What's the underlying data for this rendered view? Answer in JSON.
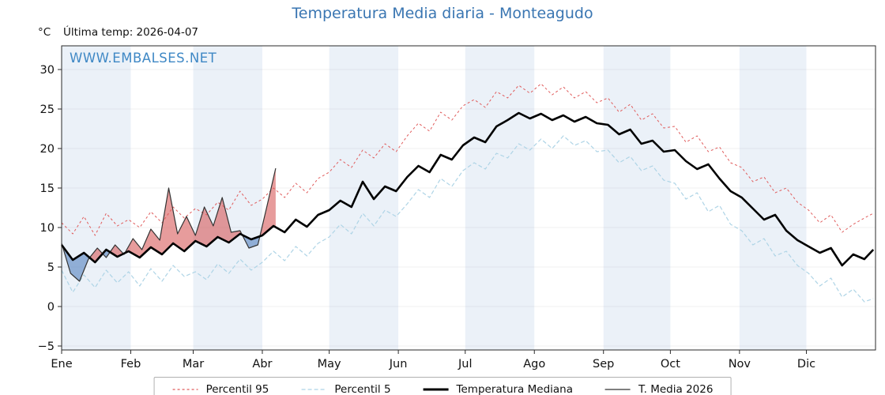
{
  "title": "Temperatura Media diaria - Monteagudo",
  "watermark": "WWW.EMBALSES.NET",
  "unit_label": "°C",
  "last_temp_label": "Última temp: 2026-04-07",
  "colors": {
    "title": "#3a76b2",
    "watermark": "#3f88c5",
    "month_band": "#ebf1f8",
    "axis": "#2a2a2a",
    "fill_above": "rgba(215,90,90,0.6)",
    "fill_below": "rgba(105,145,200,0.7)"
  },
  "chart_data": {
    "type": "line",
    "title": "Temperatura Media diaria - Monteagudo",
    "x_unit": "day_of_year",
    "xlim": [
      1,
      366
    ],
    "ylim": [
      -5.5,
      33
    ],
    "yticks": [
      -5,
      0,
      5,
      10,
      15,
      20,
      25,
      30
    ],
    "grid": "faint-horizontal",
    "legend_position": "bottom-center",
    "months": [
      {
        "label": "Ene",
        "day": 1
      },
      {
        "label": "Feb",
        "day": 32
      },
      {
        "label": "Mar",
        "day": 60
      },
      {
        "label": "Abr",
        "day": 91
      },
      {
        "label": "May",
        "day": 121
      },
      {
        "label": "Jun",
        "day": 152
      },
      {
        "label": "Jul",
        "day": 182
      },
      {
        "label": "Ago",
        "day": 213
      },
      {
        "label": "Sep",
        "day": 244
      },
      {
        "label": "Oct",
        "day": 274
      },
      {
        "label": "Nov",
        "day": 305
      },
      {
        "label": "Dic",
        "day": 335
      }
    ],
    "series": [
      {
        "key": "p95",
        "name": "Percentil 95",
        "color": "#e05c5c",
        "width": 1,
        "dash": "3 3",
        "x": [
          1,
          6,
          11,
          16,
          21,
          26,
          31,
          36,
          41,
          46,
          51,
          56,
          61,
          66,
          71,
          76,
          81,
          86,
          91,
          96,
          101,
          106,
          111,
          116,
          121,
          126,
          131,
          136,
          141,
          146,
          151,
          156,
          161,
          166,
          171,
          176,
          181,
          186,
          191,
          196,
          201,
          206,
          211,
          216,
          221,
          226,
          231,
          236,
          241,
          246,
          251,
          256,
          261,
          266,
          271,
          276,
          281,
          286,
          291,
          296,
          301,
          306,
          311,
          316,
          321,
          326,
          331,
          336,
          341,
          346,
          351,
          356,
          361,
          365
        ],
        "values": [
          10.6,
          9.2,
          11.4,
          9.0,
          11.8,
          10.2,
          11.0,
          10.0,
          12.0,
          10.6,
          12.6,
          11.2,
          12.4,
          11.6,
          13.2,
          12.2,
          14.6,
          12.8,
          13.6,
          15.0,
          13.8,
          15.6,
          14.4,
          16.2,
          17.0,
          18.6,
          17.6,
          19.8,
          18.8,
          20.6,
          19.6,
          21.6,
          23.2,
          22.2,
          24.6,
          23.6,
          25.4,
          26.2,
          25.2,
          27.2,
          26.4,
          28.0,
          27.0,
          28.2,
          26.8,
          27.8,
          26.4,
          27.2,
          25.8,
          26.4,
          24.6,
          25.6,
          23.6,
          24.4,
          22.6,
          22.8,
          20.8,
          21.6,
          19.6,
          20.2,
          18.2,
          17.6,
          15.8,
          16.4,
          14.4,
          15.0,
          13.2,
          12.2,
          10.6,
          11.6,
          9.4,
          10.4,
          11.2,
          11.8
        ]
      },
      {
        "key": "p5",
        "name": "Percentil 5",
        "color": "#aed4e6",
        "width": 1.2,
        "dash": "5 3",
        "x": [
          1,
          6,
          11,
          16,
          21,
          26,
          31,
          36,
          41,
          46,
          51,
          56,
          61,
          66,
          71,
          76,
          81,
          86,
          91,
          96,
          101,
          106,
          111,
          116,
          121,
          126,
          131,
          136,
          141,
          146,
          151,
          156,
          161,
          166,
          171,
          176,
          181,
          186,
          191,
          196,
          201,
          206,
          211,
          216,
          221,
          226,
          231,
          236,
          241,
          246,
          251,
          256,
          261,
          266,
          271,
          276,
          281,
          286,
          291,
          296,
          301,
          306,
          311,
          316,
          321,
          326,
          331,
          336,
          341,
          346,
          351,
          356,
          361,
          365
        ],
        "values": [
          4.6,
          1.8,
          4.0,
          2.4,
          4.6,
          3.0,
          4.4,
          2.6,
          4.8,
          3.2,
          5.2,
          3.8,
          4.4,
          3.4,
          5.4,
          4.2,
          6.0,
          4.6,
          5.6,
          7.0,
          5.8,
          7.6,
          6.4,
          8.0,
          8.8,
          10.4,
          9.2,
          11.8,
          10.2,
          12.2,
          11.4,
          13.0,
          14.8,
          13.8,
          16.2,
          15.2,
          17.2,
          18.2,
          17.4,
          19.4,
          18.8,
          20.6,
          19.8,
          21.2,
          20.0,
          21.6,
          20.4,
          21.0,
          19.6,
          19.8,
          18.2,
          19.0,
          17.2,
          17.8,
          16.0,
          15.6,
          13.6,
          14.4,
          12.0,
          12.8,
          10.4,
          9.6,
          7.8,
          8.6,
          6.4,
          7.0,
          5.2,
          4.2,
          2.6,
          3.6,
          1.2,
          2.2,
          0.6,
          1.0
        ]
      },
      {
        "key": "median",
        "name": "Temperatura Mediana",
        "color": "#000000",
        "width": 2.6,
        "dash": "",
        "x": [
          1,
          6,
          11,
          16,
          21,
          26,
          31,
          36,
          41,
          46,
          51,
          56,
          61,
          66,
          71,
          76,
          81,
          86,
          91,
          96,
          101,
          106,
          111,
          116,
          121,
          126,
          131,
          136,
          141,
          146,
          151,
          156,
          161,
          166,
          171,
          176,
          181,
          186,
          191,
          196,
          201,
          206,
          211,
          216,
          221,
          226,
          231,
          236,
          241,
          246,
          251,
          256,
          261,
          266,
          271,
          276,
          281,
          286,
          291,
          296,
          301,
          306,
          311,
          316,
          321,
          326,
          331,
          336,
          341,
          346,
          351,
          356,
          361,
          365
        ],
        "values": [
          7.8,
          5.9,
          6.8,
          5.6,
          7.2,
          6.3,
          7.0,
          6.2,
          7.5,
          6.6,
          8.0,
          7.0,
          8.3,
          7.6,
          8.8,
          8.1,
          9.2,
          8.5,
          9.0,
          10.2,
          9.4,
          11.0,
          10.1,
          11.6,
          12.2,
          13.4,
          12.6,
          15.8,
          13.6,
          15.2,
          14.6,
          16.4,
          17.8,
          17.0,
          19.2,
          18.6,
          20.4,
          21.4,
          20.8,
          22.8,
          23.6,
          24.5,
          23.8,
          24.4,
          23.6,
          24.2,
          23.4,
          24.0,
          23.2,
          23.0,
          21.8,
          22.4,
          20.6,
          21.0,
          19.6,
          19.8,
          18.4,
          17.4,
          18.0,
          16.2,
          14.6,
          13.8,
          12.4,
          11.0,
          11.6,
          9.6,
          8.4,
          7.6,
          6.8,
          7.4,
          5.2,
          6.6,
          6.0,
          7.2
        ]
      },
      {
        "key": "t2026",
        "name": "T. Media 2026",
        "color": "#333333",
        "width": 1.2,
        "dash": "",
        "x": [
          1,
          5,
          9,
          13,
          17,
          21,
          25,
          29,
          33,
          37,
          41,
          45,
          49,
          53,
          57,
          61,
          65,
          69,
          73,
          77,
          81,
          85,
          89,
          93,
          97
        ],
        "values": [
          8.0,
          4.2,
          3.2,
          6.0,
          7.4,
          6.2,
          7.8,
          6.6,
          8.6,
          7.2,
          9.8,
          8.4,
          15.0,
          9.2,
          11.4,
          9.0,
          12.6,
          10.2,
          13.8,
          9.4,
          9.6,
          7.4,
          7.8,
          12.6,
          17.5
        ]
      }
    ],
    "fills": {
      "between": [
        "t2026",
        "median"
      ],
      "above_color": "rgba(215,90,90,0.6)",
      "below_color": "rgba(105,145,200,0.7)"
    }
  },
  "legend": {
    "items": [
      "Percentil 95",
      "Percentil 5",
      "Temperatura Mediana",
      "T. Media 2026"
    ]
  }
}
